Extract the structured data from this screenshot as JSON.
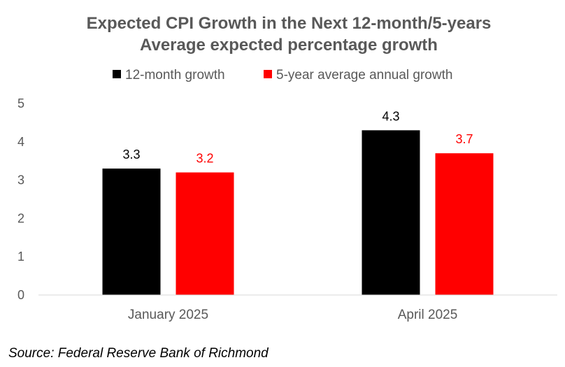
{
  "chart_data": {
    "type": "bar",
    "title": "Expected CPI Growth in the Next 12-month/5-years",
    "subtitle": "Average expected percentage growth",
    "categories": [
      "January 2025",
      "April 2025"
    ],
    "series": [
      {
        "name": "12-month growth",
        "values": [
          3.3,
          4.3
        ],
        "color": "#000000",
        "label_color": "#000000"
      },
      {
        "name": "5-year average annual growth",
        "values": [
          3.2,
          3.7
        ],
        "color": "#ff0000",
        "label_color": "#ff0000"
      }
    ],
    "y_ticks": [
      0,
      1,
      2,
      3,
      4,
      5
    ],
    "ylim": [
      0,
      5
    ],
    "xlabel": "",
    "ylabel": "",
    "legend_position": "top",
    "grid": false,
    "data_labels": true
  },
  "source": "Source: Federal Reserve Bank of Richmond"
}
